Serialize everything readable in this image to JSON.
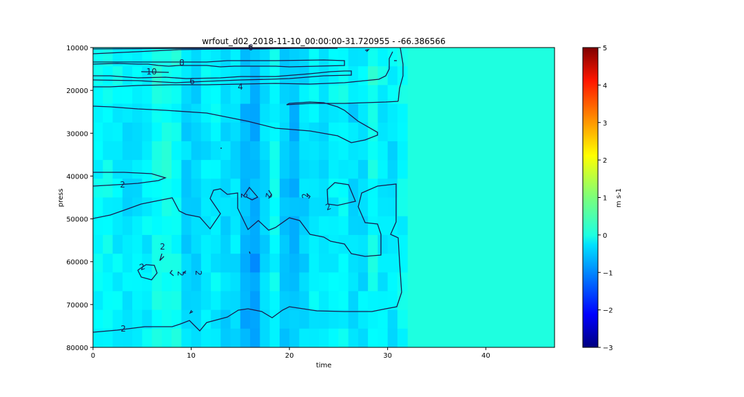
{
  "chart_data": {
    "type": "heatmap",
    "title": "wrfout_d02_2018-11-10_00:00:00-31.720955 - -66.386566",
    "xlabel": "time",
    "ylabel": "press",
    "xlim": [
      0,
      47
    ],
    "ylim": [
      80000,
      10000
    ],
    "x_ticks": [
      "0",
      "10",
      "20",
      "30",
      "40"
    ],
    "x_tick_values": [
      0,
      10,
      20,
      30,
      40
    ],
    "y_ticks": [
      "10000",
      "20000",
      "30000",
      "40000",
      "50000",
      "60000",
      "70000",
      "80000"
    ],
    "y_tick_values": [
      10000,
      20000,
      30000,
      40000,
      50000,
      60000,
      70000,
      80000
    ],
    "colorbar": {
      "label": "m s-1",
      "min": -3,
      "max": 5,
      "ticks": [
        "5",
        "4",
        "3",
        "2",
        "1",
        "0",
        "−1",
        "−2",
        "−3"
      ],
      "tick_values": [
        5,
        4,
        3,
        2,
        1,
        0,
        -1,
        -2,
        -3
      ],
      "colormap": "jet"
    },
    "background_value": 0.0,
    "data_extent_time": [
      0,
      32
    ],
    "contour_levels_labeled": [
      "2",
      "4",
      "6",
      "8",
      "10",
      "6",
      "2",
      "2",
      "2",
      "2",
      "2",
      "2",
      "2",
      "2",
      "2",
      "2"
    ],
    "note_colors": {
      "background": "#1effe0",
      "contour": "#1a1a4d"
    }
  }
}
